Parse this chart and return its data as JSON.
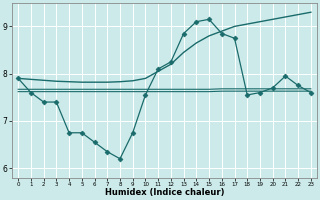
{
  "xlabel": "Humidex (Indice chaleur)",
  "background_color": "#cdeaea",
  "grid_color": "#ffffff",
  "line_color": "#1a6b6b",
  "xlim": [
    -0.5,
    23.5
  ],
  "ylim": [
    5.8,
    9.5
  ],
  "yticks": [
    6,
    7,
    8,
    9
  ],
  "xticks": [
    0,
    1,
    2,
    3,
    4,
    5,
    6,
    7,
    8,
    9,
    10,
    11,
    12,
    13,
    14,
    15,
    16,
    17,
    18,
    19,
    20,
    21,
    22,
    23
  ],
  "series": [
    {
      "x": [
        0,
        1,
        2,
        3,
        4,
        5,
        6,
        7,
        8,
        9,
        10,
        11,
        12,
        13,
        14,
        15,
        16,
        17,
        18,
        19,
        20,
        21,
        22,
        23
      ],
      "y": [
        7.9,
        7.88,
        7.86,
        7.84,
        7.83,
        7.82,
        7.82,
        7.82,
        7.83,
        7.85,
        7.9,
        8.05,
        8.2,
        8.45,
        8.65,
        8.8,
        8.9,
        9.0,
        9.05,
        9.1,
        9.15,
        9.2,
        9.25,
        9.3
      ],
      "marker": null,
      "markersize": 0,
      "linewidth": 1.0
    },
    {
      "x": [
        0,
        1,
        2,
        3,
        4,
        5,
        6,
        7,
        8,
        9,
        10,
        11,
        12,
        13,
        14,
        15,
        16,
        17,
        18,
        19,
        20,
        21,
        22,
        23
      ],
      "y": [
        7.62,
        7.62,
        7.62,
        7.62,
        7.62,
        7.62,
        7.62,
        7.62,
        7.62,
        7.62,
        7.62,
        7.62,
        7.62,
        7.62,
        7.62,
        7.62,
        7.63,
        7.63,
        7.63,
        7.63,
        7.63,
        7.63,
        7.63,
        7.63
      ],
      "marker": null,
      "markersize": 0,
      "linewidth": 0.8
    },
    {
      "x": [
        0,
        1,
        2,
        3,
        4,
        5,
        6,
        7,
        8,
        9,
        10,
        11,
        12,
        13,
        14,
        15,
        16,
        17,
        18,
        19,
        20,
        21,
        22,
        23
      ],
      "y": [
        7.67,
        7.67,
        7.67,
        7.67,
        7.67,
        7.67,
        7.67,
        7.67,
        7.67,
        7.67,
        7.67,
        7.67,
        7.67,
        7.67,
        7.67,
        7.67,
        7.68,
        7.68,
        7.68,
        7.68,
        7.68,
        7.68,
        7.68,
        7.68
      ],
      "marker": null,
      "markersize": 0,
      "linewidth": 0.8
    },
    {
      "x": [
        0,
        1,
        2,
        3,
        4,
        5,
        6,
        7,
        8,
        9,
        10,
        11,
        12,
        13,
        14,
        15,
        16,
        17,
        18,
        19,
        20,
        21,
        22,
        23
      ],
      "y": [
        7.9,
        7.6,
        7.4,
        7.4,
        6.75,
        6.75,
        6.55,
        6.35,
        6.2,
        6.75,
        7.55,
        8.1,
        8.25,
        8.85,
        9.1,
        9.15,
        8.85,
        8.75,
        7.55,
        7.6,
        7.7,
        7.95,
        7.75,
        7.6
      ],
      "marker": "D",
      "markersize": 2.5,
      "linewidth": 0.9
    }
  ]
}
